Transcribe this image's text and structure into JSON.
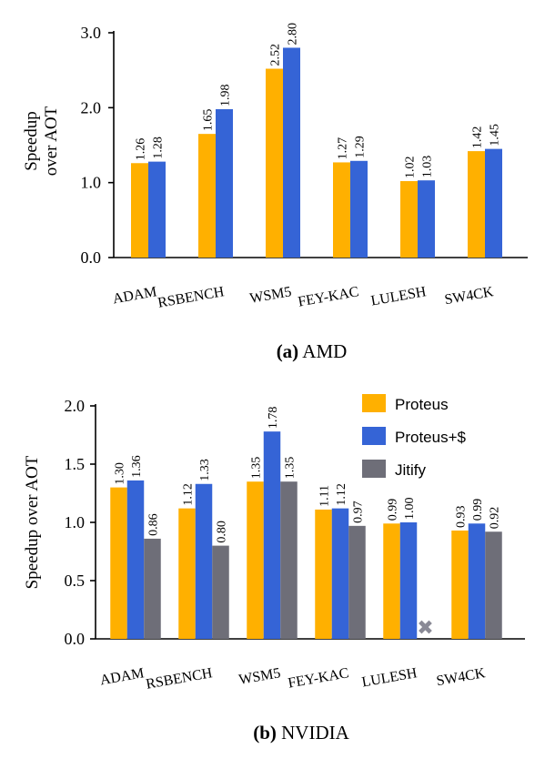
{
  "colors": {
    "proteus": "#FFB000",
    "proteus_cache": "#3564D6",
    "jitify": "#6E6E78",
    "axis": "#000000",
    "missing": "#8A8A96"
  },
  "chart_data": [
    {
      "type": "bar",
      "panel": "a",
      "caption_label": "(a)",
      "caption_text": "AMD",
      "ylabel_lines": [
        "Speedup",
        "over AOT"
      ],
      "ylim": [
        0,
        3.0
      ],
      "yticks": [
        "0.0",
        "1.0",
        "2.0",
        "3.0"
      ],
      "ytick_values": [
        0,
        1.0,
        2.0,
        3.0
      ],
      "categories": [
        "ADAM",
        "RSBENCH",
        "WSM5",
        "FEY-KAC",
        "LULESH",
        "SW4CK"
      ],
      "series": [
        {
          "name": "Proteus",
          "color_key": "proteus",
          "values": [
            1.26,
            1.65,
            2.52,
            1.27,
            1.02,
            1.42
          ],
          "labels": [
            "1.26",
            "1.65",
            "2.52",
            "1.27",
            "1.02",
            "1.42"
          ]
        },
        {
          "name": "Proteus+$",
          "color_key": "proteus_cache",
          "values": [
            1.28,
            1.98,
            2.8,
            1.29,
            1.03,
            1.45
          ],
          "labels": [
            "1.28",
            "1.98",
            "2.80",
            "1.29",
            "1.03",
            "1.45"
          ]
        }
      ],
      "legend": false
    },
    {
      "type": "bar",
      "panel": "b",
      "caption_label": "(b)",
      "caption_text": "NVIDIA",
      "ylabel_lines": [
        "Speedup over AOT"
      ],
      "ylim": [
        0,
        2.0
      ],
      "yticks": [
        "0.0",
        "0.5",
        "1.0",
        "1.5",
        "2.0"
      ],
      "ytick_values": [
        0,
        0.5,
        1.0,
        1.5,
        2.0
      ],
      "categories": [
        "ADAM",
        "RSBENCH",
        "WSM5",
        "FEY-KAC",
        "LULESH",
        "SW4CK"
      ],
      "series": [
        {
          "name": "Proteus",
          "color_key": "proteus",
          "values": [
            1.3,
            1.12,
            1.35,
            1.11,
            0.99,
            0.93
          ],
          "labels": [
            "1.30",
            "1.12",
            "1.35",
            "1.11",
            "0.99",
            "0.93"
          ]
        },
        {
          "name": "Proteus+$",
          "color_key": "proteus_cache",
          "values": [
            1.36,
            1.33,
            1.78,
            1.12,
            1.0,
            0.99
          ],
          "labels": [
            "1.36",
            "1.33",
            "1.78",
            "1.12",
            "1.00",
            "0.99"
          ]
        },
        {
          "name": "Jitify",
          "color_key": "jitify",
          "values": [
            0.86,
            0.8,
            1.35,
            0.97,
            null,
            0.92
          ],
          "labels": [
            "0.86",
            "0.80",
            "1.35",
            "0.97",
            null,
            "0.92"
          ]
        }
      ],
      "missing_marker": "✖",
      "legend": true,
      "legend_position": "top-right"
    }
  ]
}
